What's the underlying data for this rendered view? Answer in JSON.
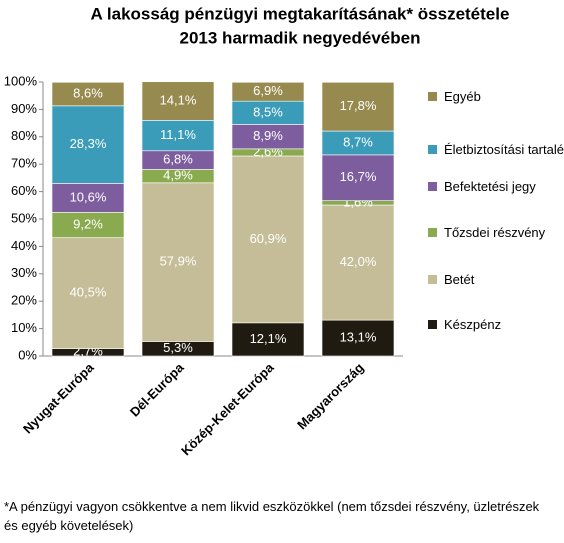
{
  "chart_data": {
    "type": "stacked_bar",
    "title": [
      "A lakosság pénzügyi megtakarításának* összetétele",
      "2013 harmadik negyedévében"
    ],
    "categories": [
      "Nyugat-Európa",
      "Dél-Európa",
      "Közép-Kelet-Európa",
      "Magyarország"
    ],
    "series": [
      {
        "name": "Készpénz",
        "color": "#1f1b10",
        "values": [
          2.7,
          5.3,
          12.1,
          13.1
        ],
        "value_labels": [
          "2,7%",
          "5,3%",
          "12,1%",
          "13,1%"
        ]
      },
      {
        "name": "Betét",
        "color": "#c4bd97",
        "values": [
          40.5,
          57.9,
          60.9,
          42.0
        ],
        "value_labels": [
          "40,5%",
          "57,9%",
          "60,9%",
          "42,0%"
        ]
      },
      {
        "name": "Tőzsdei részvény",
        "color": "#8aaa50",
        "values": [
          9.2,
          4.9,
          2.6,
          1.6
        ],
        "value_labels": [
          "9,2%",
          "4,9%",
          "2,6%",
          "1,6%"
        ]
      },
      {
        "name": "Befektetési jegy",
        "color": "#7d5d9e",
        "values": [
          10.6,
          6.8,
          8.9,
          16.7
        ],
        "value_labels": [
          "10,6%",
          "6,8%",
          "8,9%",
          "16,7%"
        ]
      },
      {
        "name": "Életbiztosítási tartalék",
        "color": "#3a9cb8",
        "values": [
          28.3,
          11.1,
          8.5,
          8.7
        ],
        "value_labels": [
          "28,3%",
          "11,1%",
          "8,5%",
          "8,7%"
        ]
      },
      {
        "name": "Egyéb",
        "color": "#968a4f",
        "values": [
          8.6,
          14.1,
          6.9,
          17.8
        ],
        "value_labels": [
          "8,6%",
          "14,1%",
          "6,9%",
          "17,8%"
        ]
      }
    ],
    "ylim": [
      0,
      100
    ],
    "yticks": [
      {
        "value": 0,
        "label": "0%"
      },
      {
        "value": 10,
        "label": "10%"
      },
      {
        "value": 20,
        "label": "20%"
      },
      {
        "value": 30,
        "label": "30%"
      },
      {
        "value": 40,
        "label": "40%"
      },
      {
        "value": 50,
        "label": "50%"
      },
      {
        "value": 60,
        "label": "60%"
      },
      {
        "value": 70,
        "label": "70%"
      },
      {
        "value": 80,
        "label": "80%"
      },
      {
        "value": 90,
        "label": "90%"
      },
      {
        "value": 100,
        "label": "100%"
      }
    ],
    "legend": "right",
    "footnote": "*A pénzügyi vagyon csökkentve a nem likvid eszközökkel (nem tőzsdei részvény, üzletrészek és egyéb követelések)"
  }
}
